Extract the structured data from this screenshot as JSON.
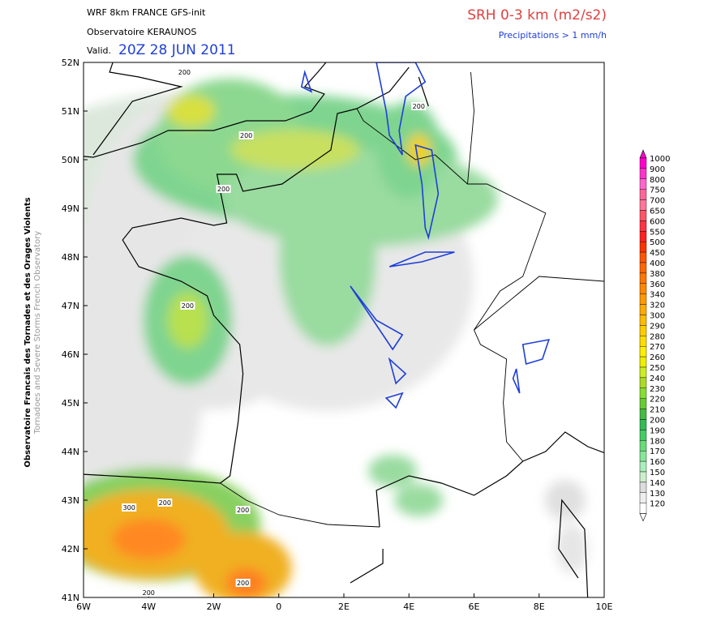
{
  "header": {
    "model": "WRF 8km FRANCE  GFS-init",
    "source": "Observatoire KERAUNOS",
    "valid_label": "Valid.",
    "valid_time": "20Z 28 JUN 2011",
    "parameter": "SRH 0-3 km (m2/s2)",
    "overlay": "Precipitations > 1 mm/h"
  },
  "side_text": {
    "line1": "Observatoire Francais des Tornades et des Orages Violents",
    "line2": "Tornadoes and Severe Storms French Observatory"
  },
  "map": {
    "lat_labels": [
      "52N",
      "51N",
      "50N",
      "49N",
      "48N",
      "47N",
      "46N",
      "45N",
      "44N",
      "43N",
      "42N",
      "41N"
    ],
    "lon_labels": [
      "6W",
      "4W",
      "2W",
      "0",
      "2E",
      "4E",
      "6E",
      "8E",
      "10E"
    ],
    "contour_labels": [
      "200",
      "200",
      "200",
      "200",
      "200",
      "200",
      "200",
      "300",
      "200",
      "200"
    ]
  },
  "colorbar": {
    "labels": [
      "1000",
      "900",
      "800",
      "750",
      "700",
      "650",
      "600",
      "550",
      "500",
      "450",
      "400",
      "380",
      "360",
      "340",
      "320",
      "300",
      "290",
      "280",
      "270",
      "260",
      "250",
      "240",
      "230",
      "220",
      "210",
      "200",
      "190",
      "180",
      "170",
      "160",
      "150",
      "140",
      "130",
      "120"
    ]
  }
}
